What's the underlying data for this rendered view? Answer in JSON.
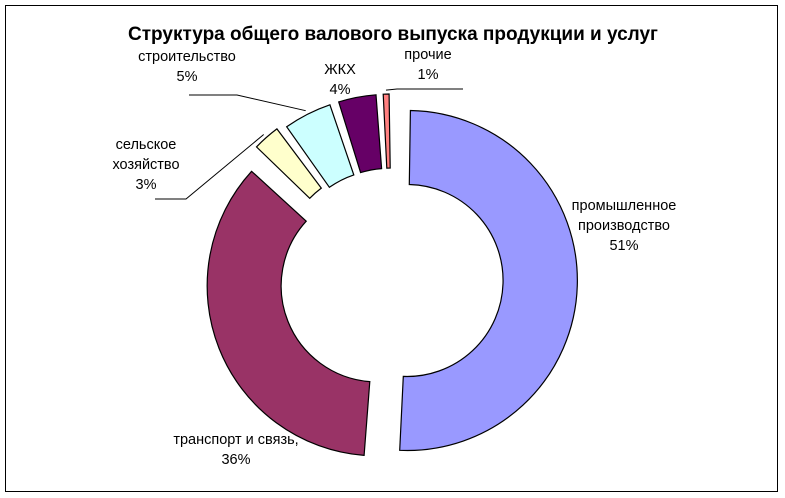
{
  "chart_data": {
    "type": "pie",
    "variant": "exploded-doughnut",
    "title": "Структура общего валового выпуска продукции и услуг",
    "legend": "none",
    "categories": [
      "промышленное производство",
      "транспорт и связь,",
      "сельское хозяйство",
      "строительство",
      "ЖКХ",
      "прочие"
    ],
    "values": [
      51,
      36,
      3,
      5,
      4,
      1
    ],
    "labels": [
      {
        "lines": [
          "промышленное",
          "производство",
          "51%"
        ]
      },
      {
        "lines": [
          "транспорт и связь,",
          "36%"
        ]
      },
      {
        "lines": [
          "сельское",
          "хозяйство",
          "3%"
        ]
      },
      {
        "lines": [
          "строительство",
          "5%"
        ]
      },
      {
        "lines": [
          "ЖКХ",
          "4%"
        ]
      },
      {
        "lines": [
          "прочие",
          "1%"
        ]
      }
    ],
    "colors": [
      "#9999ff",
      "#993366",
      "#ffffcc",
      "#ccffff",
      "#660066",
      "#ff8080"
    ]
  }
}
